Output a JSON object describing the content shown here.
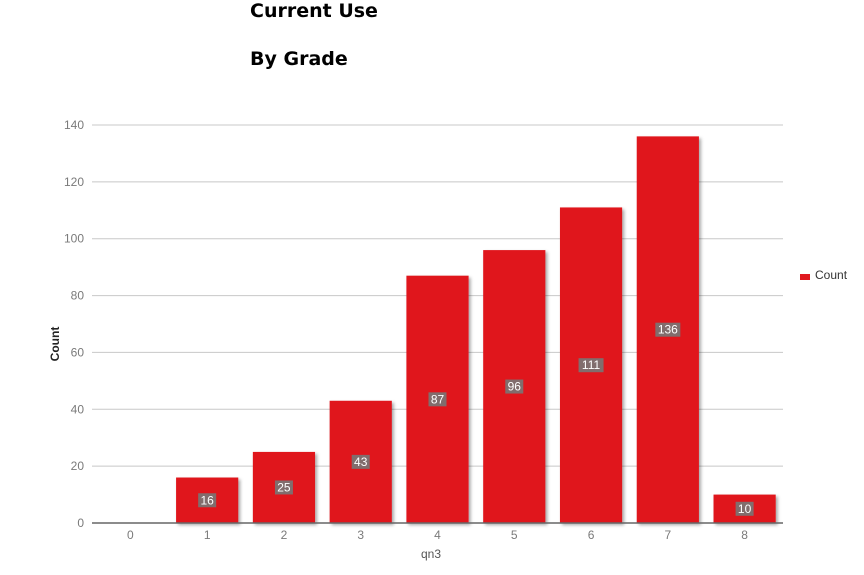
{
  "chart_data": {
    "type": "bar",
    "title": "Current Use",
    "subtitle": "By Grade",
    "xlabel": "qn3",
    "ylabel": "Count",
    "categories": [
      "0",
      "1",
      "2",
      "3",
      "4",
      "5",
      "6",
      "7",
      "8"
    ],
    "series": [
      {
        "name": "Count",
        "values": [
          0,
          16,
          25,
          43,
          87,
          96,
          111,
          136,
          10
        ],
        "color": "#e0191f"
      }
    ],
    "ylim": [
      0,
      140
    ],
    "yticks": [
      0,
      20,
      40,
      60,
      80,
      100,
      120,
      140
    ],
    "grid": true,
    "legend_position": "right",
    "data_labels": [
      "",
      "16",
      "25",
      "43",
      "87",
      "96",
      "111",
      "136",
      "10"
    ]
  }
}
